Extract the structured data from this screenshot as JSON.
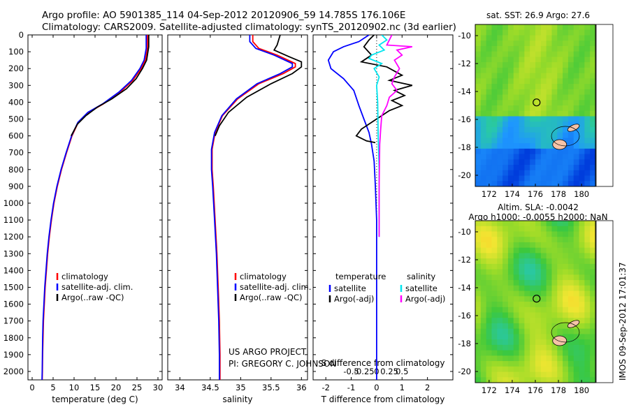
{
  "header": {
    "line1": "Argo profile: AO 5901385_114 04-Sep-2012 20120906_59 14.785S 176.106E",
    "line2": "Climatology: CARS2009. Satellite-adjusted climatology: synTS_20120902.nc (3d earlier)"
  },
  "side_stamp": "IMOS 09-Sep-2012 17:01:37",
  "project": {
    "line1": "US ARGO PROJECT",
    "line2": "PI: GREGORY C. JOHNSON"
  },
  "colors": {
    "climatology": "#ff0000",
    "satellite": "#0000ff",
    "argo": "#000000",
    "sat_salinity": "#00e5ee",
    "argo_salinity": "#ff00ff",
    "land": "#f5c3a8"
  },
  "chart_data": [
    {
      "id": "temperature",
      "type": "line",
      "xlabel": "temperature (deg C)",
      "ylim": [
        2050,
        0
      ],
      "xlim": [
        -1,
        31
      ],
      "xticks": [
        0,
        5,
        10,
        15,
        20,
        25,
        30
      ],
      "yticks": [
        0,
        100,
        200,
        300,
        400,
        500,
        600,
        700,
        800,
        900,
        1000,
        1100,
        1200,
        1300,
        1400,
        1500,
        1600,
        1700,
        1800,
        1900,
        2000
      ],
      "legend": [
        "climatology",
        "satellite-adj. clim.",
        "Argo(..raw -QC)"
      ],
      "series": [
        {
          "name": "climatology",
          "color": "#ff0000",
          "points": [
            [
              27.5,
              0
            ],
            [
              27.5,
              80
            ],
            [
              27,
              150
            ],
            [
              26,
              200
            ],
            [
              24,
              270
            ],
            [
              21,
              340
            ],
            [
              17,
              410
            ],
            [
              13.5,
              460
            ],
            [
              11,
              520
            ],
            [
              9.5,
              600
            ],
            [
              8.2,
              700
            ],
            [
              7,
              800
            ],
            [
              6,
              900
            ],
            [
              5.2,
              1000
            ],
            [
              4.6,
              1100
            ],
            [
              4.1,
              1200
            ],
            [
              3.7,
              1300
            ],
            [
              3.4,
              1400
            ],
            [
              3.1,
              1500
            ],
            [
              2.9,
              1600
            ],
            [
              2.7,
              1700
            ],
            [
              2.6,
              1800
            ],
            [
              2.5,
              1900
            ],
            [
              2.45,
              2000
            ],
            [
              2.4,
              2050
            ]
          ]
        },
        {
          "name": "satellite-adj. clim.",
          "color": "#0000ff",
          "points": [
            [
              27.2,
              0
            ],
            [
              27.2,
              80
            ],
            [
              26.7,
              150
            ],
            [
              25.7,
              200
            ],
            [
              23.7,
              270
            ],
            [
              20.7,
              340
            ],
            [
              16.8,
              410
            ],
            [
              13.3,
              460
            ],
            [
              10.9,
              520
            ],
            [
              9.4,
              600
            ],
            [
              8.1,
              700
            ],
            [
              6.9,
              800
            ],
            [
              5.9,
              900
            ],
            [
              5.1,
              1000
            ],
            [
              4.5,
              1100
            ],
            [
              4.0,
              1200
            ],
            [
              3.6,
              1300
            ],
            [
              3.3,
              1400
            ],
            [
              3.0,
              1500
            ],
            [
              2.8,
              1600
            ],
            [
              2.6,
              1700
            ],
            [
              2.5,
              1800
            ],
            [
              2.45,
              1900
            ],
            [
              2.4,
              2000
            ],
            [
              2.35,
              2050
            ]
          ]
        },
        {
          "name": "Argo(..raw -QC)",
          "color": "#000000",
          "points": [
            [
              27.8,
              0
            ],
            [
              27.8,
              70
            ],
            [
              27.3,
              150
            ],
            [
              26.3,
              200
            ],
            [
              24.8,
              260
            ],
            [
              22.5,
              320
            ],
            [
              19,
              380
            ],
            [
              15.5,
              430
            ],
            [
              12.8,
              480
            ],
            [
              10.8,
              530
            ],
            [
              9.3,
              600
            ]
          ]
        }
      ]
    },
    {
      "id": "salinity",
      "type": "line",
      "xlabel": "salinity",
      "ylim": [
        2050,
        0
      ],
      "xlim": [
        33.8,
        36.1
      ],
      "xticks": [
        34,
        34.5,
        35,
        35.5,
        36
      ],
      "xticklabels": [
        "34",
        "34.5",
        "35",
        "35.5",
        "36"
      ],
      "legend": [
        "climatology",
        "satellite-adj. clim.",
        "Argo(..raw -QC)"
      ],
      "series": [
        {
          "name": "climatology",
          "color": "#ff0000",
          "points": [
            [
              35.2,
              0
            ],
            [
              35.2,
              40
            ],
            [
              35.3,
              80
            ],
            [
              35.6,
              120
            ],
            [
              35.9,
              170
            ],
            [
              35.9,
              190
            ],
            [
              35.7,
              230
            ],
            [
              35.3,
              290
            ],
            [
              34.95,
              380
            ],
            [
              34.7,
              480
            ],
            [
              34.58,
              580
            ],
            [
              34.53,
              680
            ],
            [
              34.53,
              800
            ],
            [
              34.55,
              900
            ],
            [
              34.58,
              1100
            ],
            [
              34.61,
              1300
            ],
            [
              34.63,
              1500
            ],
            [
              34.65,
              1700
            ],
            [
              34.66,
              1900
            ],
            [
              34.66,
              2050
            ]
          ]
        },
        {
          "name": "satellite-adj. clim.",
          "color": "#0000ff",
          "points": [
            [
              35.15,
              0
            ],
            [
              35.15,
              40
            ],
            [
              35.25,
              80
            ],
            [
              35.55,
              120
            ],
            [
              35.85,
              170
            ],
            [
              35.85,
              190
            ],
            [
              35.65,
              230
            ],
            [
              35.27,
              290
            ],
            [
              34.93,
              380
            ],
            [
              34.69,
              480
            ],
            [
              34.57,
              580
            ],
            [
              34.52,
              680
            ],
            [
              34.52,
              800
            ],
            [
              34.54,
              900
            ],
            [
              34.57,
              1100
            ],
            [
              34.6,
              1300
            ],
            [
              34.62,
              1500
            ],
            [
              34.64,
              1700
            ],
            [
              34.65,
              1900
            ],
            [
              34.65,
              2050
            ]
          ]
        },
        {
          "name": "Argo(..raw -QC)",
          "color": "#000000",
          "points": [
            [
              35.65,
              0
            ],
            [
              35.6,
              60
            ],
            [
              35.55,
              90
            ],
            [
              35.8,
              130
            ],
            [
              36.0,
              160
            ],
            [
              36.0,
              190
            ],
            [
              35.85,
              230
            ],
            [
              35.5,
              290
            ],
            [
              35.1,
              370
            ],
            [
              34.8,
              460
            ],
            [
              34.65,
              540
            ],
            [
              34.58,
              600
            ]
          ]
        }
      ]
    },
    {
      "id": "differences",
      "type": "line",
      "xlabel": "T difference from climatology",
      "xlabel_top": "S difference from climatology",
      "ylim": [
        2050,
        0
      ],
      "xlim": [
        -2.5,
        3
      ],
      "xticks": [
        -2,
        -1,
        0,
        1,
        2
      ],
      "sticks": [
        -0.5,
        -0.25,
        0,
        0.25,
        0.5
      ],
      "sticklabels": [
        "-0.5",
        "-0.25",
        "0",
        "0.25",
        "0.5"
      ],
      "legend_temperature": {
        "heading": "temperature",
        "items": [
          "satellite",
          "Argo(-adj)"
        ]
      },
      "legend_salinity": {
        "heading": "salinity",
        "items": [
          "satellite",
          "Argo(-adj)"
        ]
      },
      "series": [
        {
          "name": "T satellite",
          "color": "#0000ff",
          "points": [
            [
              -0.3,
              0
            ],
            [
              -0.7,
              40
            ],
            [
              -1.3,
              70
            ],
            [
              -1.7,
              100
            ],
            [
              -1.9,
              150
            ],
            [
              -1.8,
              200
            ],
            [
              -1.3,
              260
            ],
            [
              -0.9,
              330
            ],
            [
              -0.7,
              420
            ],
            [
              -0.5,
              500
            ],
            [
              -0.3,
              580
            ],
            [
              -0.2,
              650
            ],
            [
              -0.1,
              750
            ],
            [
              -0.05,
              900
            ],
            [
              0,
              1100
            ],
            [
              0,
              2050
            ]
          ]
        },
        {
          "name": "T Argo(-adj)",
          "color": "#000000",
          "points": [
            [
              -0.1,
              0
            ],
            [
              -0.3,
              30
            ],
            [
              -0.5,
              70
            ],
            [
              -0.2,
              120
            ],
            [
              -0.6,
              160
            ],
            [
              0.4,
              190
            ],
            [
              1.0,
              240
            ],
            [
              0.5,
              270
            ],
            [
              1.4,
              300
            ],
            [
              0.7,
              330
            ],
            [
              1.1,
              360
            ],
            [
              0.6,
              390
            ],
            [
              1.0,
              420
            ],
            [
              0.5,
              450
            ],
            [
              0.3,
              470
            ],
            [
              -0.2,
              520
            ],
            [
              -0.6,
              560
            ],
            [
              -0.8,
              600
            ],
            [
              -0.4,
              630
            ],
            [
              -0.05,
              640
            ]
          ]
        },
        {
          "name": "S satellite",
          "color": "#00e5ee",
          "points": [
            [
              0.1,
              0
            ],
            [
              0.2,
              30
            ],
            [
              0.05,
              60
            ],
            [
              0.15,
              90
            ],
            [
              -0.1,
              120
            ],
            [
              -0.15,
              140
            ],
            [
              0.1,
              170
            ],
            [
              -0.05,
              200
            ],
            [
              0.05,
              250
            ],
            [
              0.0,
              300
            ],
            [
              0.02,
              400
            ],
            [
              0.03,
              600
            ],
            [
              0.05,
              800
            ],
            [
              0.05,
              1000
            ],
            [
              0.05,
              1200
            ]
          ]
        },
        {
          "name": "S Argo(-adj)",
          "color": "#ff00ff",
          "points": [
            [
              0.3,
              0
            ],
            [
              0.25,
              30
            ],
            [
              0.2,
              60
            ],
            [
              0.7,
              70
            ],
            [
              0.4,
              90
            ],
            [
              0.5,
              120
            ],
            [
              0.35,
              150
            ],
            [
              0.45,
              200
            ],
            [
              0.35,
              250
            ],
            [
              0.3,
              290
            ],
            [
              0.4,
              330
            ],
            [
              0.25,
              370
            ],
            [
              0.2,
              420
            ],
            [
              0.1,
              480
            ],
            [
              0.08,
              560
            ],
            [
              0.06,
              650
            ],
            [
              0.05,
              900
            ],
            [
              0.05,
              1200
            ]
          ]
        }
      ]
    }
  ],
  "maps": [
    {
      "id": "sst-map",
      "title": "sat. SST: 26.9 Argo: 27.6",
      "xticks": [
        172,
        174,
        176,
        178,
        180
      ],
      "yticks": [
        -10,
        -12,
        -14,
        -16,
        -18,
        -20
      ],
      "xlim": [
        170.8,
        181.2
      ],
      "ylim": [
        -20.8,
        -9.2
      ],
      "argo_position": [
        176.106,
        -14.785
      ]
    },
    {
      "id": "sla-map",
      "title1": "Altim. SLA: -0.0042",
      "title2": "Argo h1000: -0.0055 h2000: NaN",
      "xticks": [
        172,
        174,
        176,
        178,
        180
      ],
      "yticks": [
        -10,
        -12,
        -14,
        -16,
        -18,
        -20
      ],
      "xlim": [
        170.8,
        181.2
      ],
      "ylim": [
        -20.8,
        -9.2
      ],
      "argo_position": [
        176.106,
        -14.785
      ]
    }
  ]
}
